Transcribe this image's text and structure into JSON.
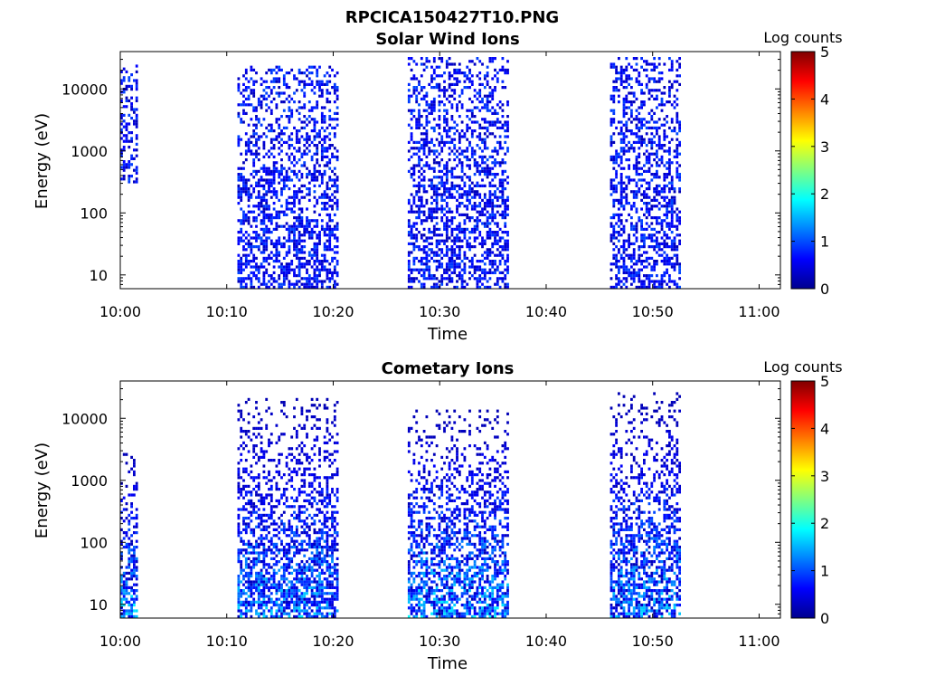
{
  "figure_title": "RPCICA150427T10.PNG",
  "colorbar": {
    "label": "Log counts",
    "ticks": [
      "0",
      "1",
      "2",
      "3",
      "4",
      "5"
    ],
    "range": [
      0,
      5
    ],
    "colormap": [
      "#00008f",
      "#0000ff",
      "#0080ff",
      "#00ffff",
      "#80ff80",
      "#ffff00",
      "#ff8000",
      "#ff0000",
      "#800000"
    ]
  },
  "chart_data": [
    {
      "type": "heatmap",
      "title": "Solar Wind Ions",
      "xlabel": "Time",
      "ylabel": "Energy (eV)",
      "x_ticks": [
        "10:00",
        "10:10",
        "10:20",
        "10:30",
        "10:40",
        "10:50",
        "11:00"
      ],
      "xlim": [
        "10:00",
        "11:02"
      ],
      "y_scale": "log",
      "y_ticks": [
        "10",
        "100",
        "1000",
        "10000"
      ],
      "ylim": [
        6,
        40000
      ],
      "blocks": [
        {
          "start": "10:00",
          "end": "10:01.5",
          "energy_range": [
            300,
            25000
          ],
          "peak_log_counts": 1.0
        },
        {
          "start": "10:11",
          "end": "10:20.5",
          "energy_range": [
            6,
            25000
          ],
          "peak_log_counts": 1.0
        },
        {
          "start": "10:27",
          "end": "10:36.5",
          "energy_range": [
            6,
            35000
          ],
          "peak_log_counts": 1.0
        },
        {
          "start": "10:46",
          "end": "10:52.5",
          "energy_range": [
            6,
            35000
          ],
          "peak_log_counts": 1.0
        }
      ]
    },
    {
      "type": "heatmap",
      "title": "Cometary Ions",
      "xlabel": "Time",
      "ylabel": "Energy (eV)",
      "x_ticks": [
        "10:00",
        "10:10",
        "10:20",
        "10:30",
        "10:40",
        "10:50",
        "11:00"
      ],
      "xlim": [
        "10:00",
        "11:02"
      ],
      "y_scale": "log",
      "y_ticks": [
        "10",
        "100",
        "1000",
        "10000"
      ],
      "ylim": [
        6,
        40000
      ],
      "blocks": [
        {
          "start": "10:00",
          "end": "10:01.5",
          "energy_range": [
            6,
            3000
          ],
          "peak_log_counts": 2.2
        },
        {
          "start": "10:11",
          "end": "10:20.5",
          "energy_range": [
            6,
            22000
          ],
          "peak_log_counts": 2.0
        },
        {
          "start": "10:27",
          "end": "10:36.5",
          "energy_range": [
            6,
            14000
          ],
          "peak_log_counts": 2.2
        },
        {
          "start": "10:46",
          "end": "10:52.5",
          "energy_range": [
            6,
            28000
          ],
          "peak_log_counts": 2.0
        }
      ]
    }
  ]
}
